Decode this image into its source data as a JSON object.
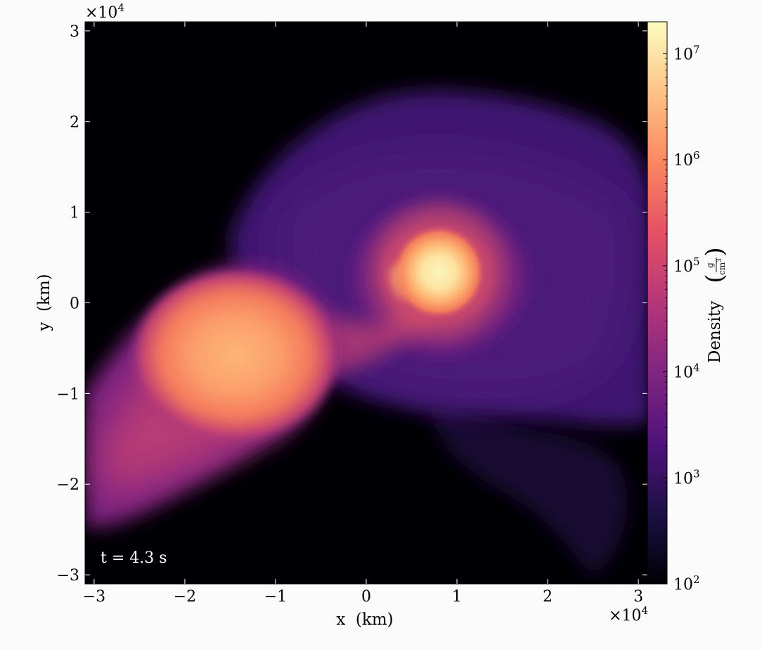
{
  "chart_data": {
    "type": "heatmap",
    "title": "",
    "quantity": "Density",
    "annotation": "t = 4.3 s",
    "xlabel": "x  (km)",
    "ylabel": "y  (km)",
    "xlim": [
      -31000.0,
      31000.0
    ],
    "ylim": [
      -31000.0,
      31000.0
    ],
    "x_ticks": [
      -30000.0,
      -20000.0,
      -10000.0,
      0,
      10000.0,
      20000.0,
      30000.0
    ],
    "x_tick_labels": [
      "−3",
      "−2",
      "−1",
      "0",
      "1",
      "2",
      "3"
    ],
    "y_ticks": [
      -30000.0,
      -20000.0,
      -10000.0,
      0,
      10000.0,
      20000.0,
      30000.0
    ],
    "y_tick_labels": [
      "−3",
      "−2",
      "−1",
      "0",
      "1",
      "2",
      "3"
    ],
    "x_offset_label": "×10",
    "x_offset_exp": "4",
    "y_offset_label": "×10",
    "y_offset_exp": "4",
    "colorbar": {
      "label": "Density",
      "units_num": "g",
      "units_den": "cm",
      "units_den_exp": "3",
      "scale": "log",
      "range": [
        100.0,
        20000000.0
      ],
      "tick_values": [
        100.0,
        1000.0,
        10000.0,
        100000.0,
        1000000.0,
        10000000.0
      ],
      "tick_base": "10",
      "tick_exps": [
        "2",
        "3",
        "4",
        "5",
        "6",
        "7"
      ],
      "colormap": "magma",
      "colormap_stops": [
        "#000004",
        "#1c1044",
        "#4f127b",
        "#812581",
        "#b5367a",
        "#e55064",
        "#fb8761",
        "#fec287",
        "#fcfdbf"
      ]
    },
    "grid": false,
    "features": [
      {
        "label": "accreting star (dense core)",
        "x": 8000,
        "y": 3500,
        "peak_density": 20000000.0
      },
      {
        "label": "disrupted companion",
        "x": -15000,
        "y": -6000,
        "peak_density": 1000000.0
      }
    ]
  }
}
